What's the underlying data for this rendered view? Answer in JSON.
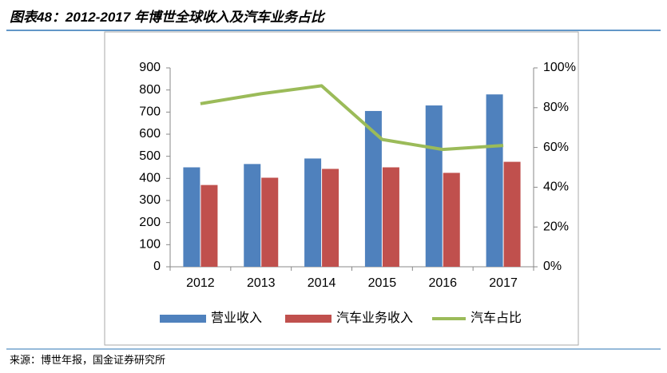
{
  "title": "图表48：2012-2017 年博世全球收入及汽车业务占比",
  "source": "来源：博世年报，国金证券研究所",
  "chart_data": {
    "type": "bar",
    "categories": [
      "2012",
      "2013",
      "2014",
      "2015",
      "2016",
      "2017"
    ],
    "series": [
      {
        "name": "营业收入",
        "color": "#4f81bd",
        "values": [
          450,
          465,
          490,
          705,
          730,
          780
        ]
      },
      {
        "name": "汽车业务收入",
        "color": "#c0504d",
        "values": [
          370,
          403,
          443,
          450,
          425,
          475
        ]
      },
      {
        "name": "汽车占比",
        "color": "#9bbb59",
        "type": "line",
        "axis": "y2",
        "values": [
          82,
          87,
          91,
          64,
          59,
          61
        ]
      }
    ],
    "ylim": [
      0,
      900
    ],
    "yticks": [
      0,
      100,
      200,
      300,
      400,
      500,
      600,
      700,
      800,
      900
    ],
    "y2lim": [
      0,
      100
    ],
    "y2ticks": [
      {
        "value": 0,
        "label": "0%"
      },
      {
        "value": 20,
        "label": "20%"
      },
      {
        "value": 40,
        "label": "40%"
      },
      {
        "value": 60,
        "label": "60%"
      },
      {
        "value": 80,
        "label": "80%"
      },
      {
        "value": 100,
        "label": "100%"
      }
    ],
    "legend": "bottom"
  }
}
